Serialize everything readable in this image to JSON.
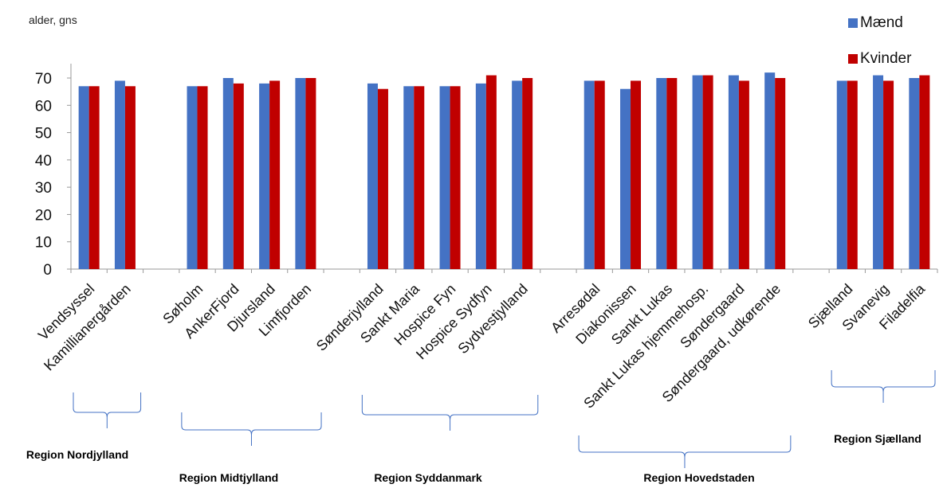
{
  "chart_data": {
    "type": "bar",
    "ylabel": "alder, gns",
    "ylim": [
      0,
      75
    ],
    "yticks": [
      0,
      10,
      20,
      30,
      40,
      50,
      60,
      70
    ],
    "categories": [
      "Vendsyssel",
      "Kamillianergården",
      "",
      "Søholm",
      "AnkerFjord",
      "Djursland",
      "Limfjorden",
      "",
      "Sønderjylland",
      "Sankt Maria",
      "Hospice Fyn",
      "Hospice Sydfyn",
      "Sydvestjylland",
      "",
      "Arresødal",
      "Diakonissen",
      "Sankt Lukas",
      "Sankt Lukas hjemmehosp.",
      "Søndergaard",
      "Søndergaard, udkørende",
      "",
      "Sjælland",
      "Svanevig",
      "Filadelfia"
    ],
    "series": [
      {
        "name": "Mænd",
        "color": "#4472C4",
        "values": [
          67,
          69,
          null,
          67,
          70,
          68,
          70,
          null,
          68,
          67,
          67,
          68,
          69,
          null,
          69,
          66,
          70,
          71,
          71,
          72,
          null,
          69,
          71,
          70
        ]
      },
      {
        "name": "Kvinder",
        "color": "#C00000",
        "values": [
          67,
          67,
          null,
          67,
          68,
          69,
          70,
          null,
          66,
          67,
          67,
          71,
          70,
          null,
          69,
          69,
          70,
          71,
          69,
          70,
          null,
          69,
          69,
          71
        ]
      }
    ],
    "legend_position": "top-right",
    "grid": false,
    "regions": [
      {
        "label": "Region Nordjylland",
        "from": 0,
        "to": 1
      },
      {
        "label": "Region Midtjylland",
        "from": 3,
        "to": 6
      },
      {
        "label": "Region Syddanmark",
        "from": 8,
        "to": 12
      },
      {
        "label": "Region Hovedstaden",
        "from": 14,
        "to": 19
      },
      {
        "label": "Region Sjælland",
        "from": 21,
        "to": 23
      }
    ]
  }
}
